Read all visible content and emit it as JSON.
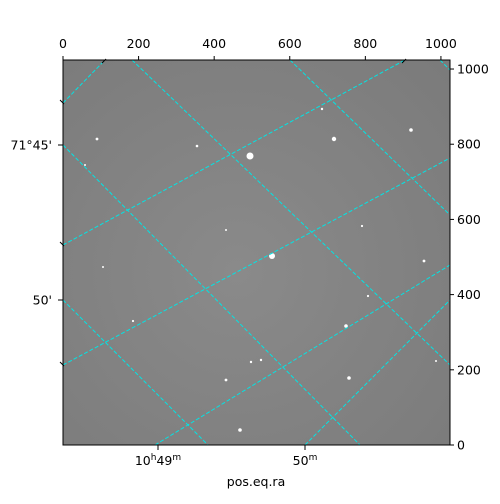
{
  "chart_data": {
    "type": "image",
    "xlabel": "pos.eq.ra",
    "xlim": [
      0,
      1024
    ],
    "ylim": [
      0,
      1024
    ],
    "xticks": [
      0,
      200,
      400,
      600,
      800,
      1000
    ],
    "yticks": [
      0,
      200,
      400,
      600,
      800,
      1000
    ],
    "world_xticklabels": [
      "10h49m",
      "50m"
    ],
    "world_yticklabels": [
      "71°45'",
      "50'"
    ],
    "grid": true,
    "grid_color": "#00e5e5"
  }
}
